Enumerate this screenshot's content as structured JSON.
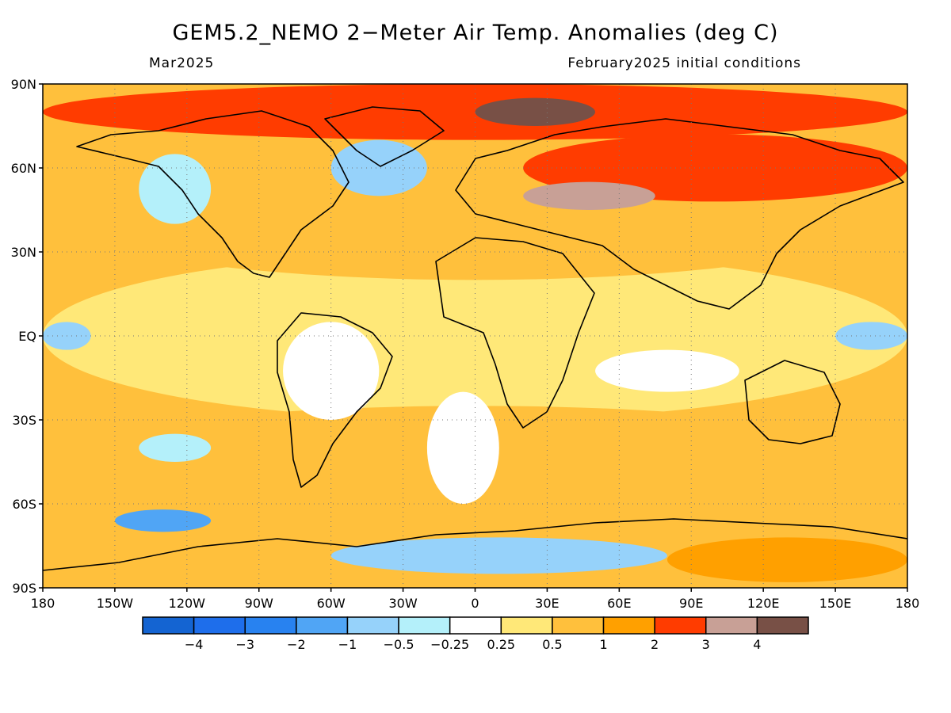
{
  "title": "GEM5.2_NEMO 2−Meter Air Temp. Anomalies (deg C)",
  "subtitle_left": "Mar2025",
  "subtitle_right": "February2025 initial conditions",
  "lat_ticks": [
    {
      "label": "90N",
      "lat": 90
    },
    {
      "label": "60N",
      "lat": 60
    },
    {
      "label": "30N",
      "lat": 30
    },
    {
      "label": "EQ",
      "lat": 0
    },
    {
      "label": "30S",
      "lat": -30
    },
    {
      "label": "60S",
      "lat": -60
    },
    {
      "label": "90S",
      "lat": -90
    }
  ],
  "lon_ticks": [
    {
      "label": "180",
      "lon": -180
    },
    {
      "label": "150W",
      "lon": -150
    },
    {
      "label": "120W",
      "lon": -120
    },
    {
      "label": "90W",
      "lon": -90
    },
    {
      "label": "60W",
      "lon": -60
    },
    {
      "label": "30W",
      "lon": -30
    },
    {
      "label": "0",
      "lon": 0
    },
    {
      "label": "30E",
      "lon": 30
    },
    {
      "label": "60E",
      "lon": 60
    },
    {
      "label": "90E",
      "lon": 90
    },
    {
      "label": "120E",
      "lon": 120
    },
    {
      "label": "150E",
      "lon": 150
    },
    {
      "label": "180",
      "lon": 180
    }
  ],
  "colorbar": {
    "colors": [
      "#1464d2",
      "#1e6eeb",
      "#2882f0",
      "#50a5f5",
      "#96d2fa",
      "#b4f0fa",
      "#ffffff",
      "#ffe878",
      "#ffc03c",
      "#ffa000",
      "#ff3c00",
      "#c8a096",
      "#785046"
    ],
    "labels": [
      "−4",
      "−3",
      "−2",
      "−1",
      "−0.5",
      "−0.25",
      "0.25",
      "0.5",
      "1",
      "2",
      "3",
      "4"
    ]
  },
  "anomaly_regions": [
    {
      "name": "tropics-band",
      "lon": [
        -180,
        180
      ],
      "lat": [
        -30,
        30
      ],
      "color": "#ffe878"
    },
    {
      "name": "north-midlat",
      "lon": [
        -180,
        180
      ],
      "lat": [
        20,
        70
      ],
      "color": "#ffc03c"
    },
    {
      "name": "south-midlat",
      "lon": [
        -180,
        180
      ],
      "lat": [
        -65,
        -25
      ],
      "color": "#ffc03c"
    },
    {
      "name": "arctic",
      "lon": [
        -180,
        180
      ],
      "lat": [
        70,
        90
      ],
      "color": "#ff3c00"
    },
    {
      "name": "siberia-warm",
      "lon": [
        20,
        180
      ],
      "lat": [
        48,
        72
      ],
      "color": "#ff3c00"
    },
    {
      "name": "russia-strong",
      "lon": [
        20,
        75
      ],
      "lat": [
        45,
        55
      ],
      "color": "#c8a096"
    },
    {
      "name": "arctic-strong",
      "lon": [
        0,
        50
      ],
      "lat": [
        75,
        85
      ],
      "color": "#785046"
    },
    {
      "name": "canada-cool",
      "lon": [
        -140,
        -110
      ],
      "lat": [
        40,
        65
      ],
      "color": "#b4f0fa"
    },
    {
      "name": "greenland-cool",
      "lon": [
        -60,
        -20
      ],
      "lat": [
        50,
        70
      ],
      "color": "#96d2fa"
    },
    {
      "name": "south-america-neutral",
      "lon": [
        -80,
        -40
      ],
      "lat": [
        -30,
        5
      ],
      "color": "#ffffff"
    },
    {
      "name": "atlantic-neutral",
      "lon": [
        -20,
        10
      ],
      "lat": [
        -60,
        -20
      ],
      "color": "#ffffff"
    },
    {
      "name": "indian-neutral",
      "lon": [
        50,
        110
      ],
      "lat": [
        -20,
        -5
      ],
      "color": "#ffffff"
    },
    {
      "name": "pacific-cool-south",
      "lon": [
        -140,
        -110
      ],
      "lat": [
        -45,
        -35
      ],
      "color": "#b4f0fa"
    },
    {
      "name": "southern-ocean-cool",
      "lon": [
        -150,
        -110
      ],
      "lat": [
        -70,
        -62
      ],
      "color": "#50a5f5"
    },
    {
      "name": "antarctic-cool",
      "lon": [
        -60,
        80
      ],
      "lat": [
        -85,
        -72
      ],
      "color": "#96d2fa"
    },
    {
      "name": "antarctic-warm",
      "lon": [
        80,
        180
      ],
      "lat": [
        -88,
        -72
      ],
      "color": "#ffa000"
    },
    {
      "name": "equatorial-pacific-cool",
      "lon": [
        -180,
        -160
      ],
      "lat": [
        -5,
        5
      ],
      "color": "#96d2fa"
    },
    {
      "name": "west-pacific-cool",
      "lon": [
        150,
        180
      ],
      "lat": [
        -5,
        5
      ],
      "color": "#96d2fa"
    }
  ]
}
